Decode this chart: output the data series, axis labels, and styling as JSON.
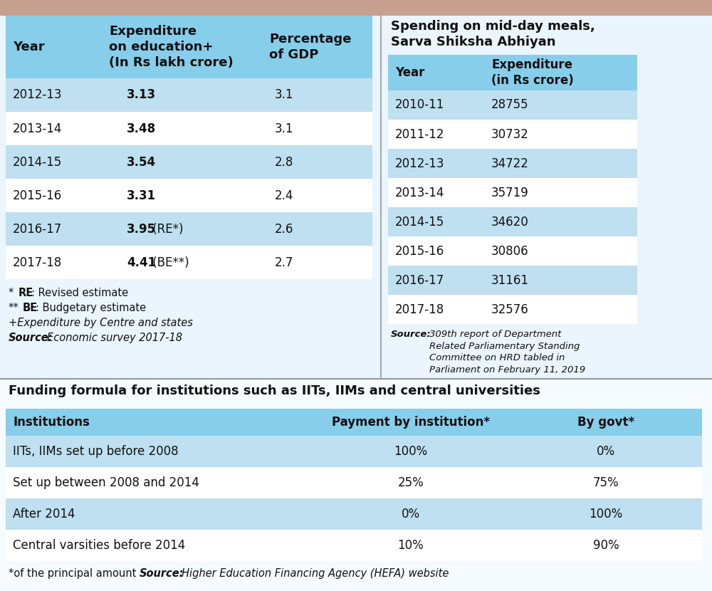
{
  "header_bg": "#87CEEB",
  "row_bg_light": "#BEE0F0",
  "row_bg_white": "#FFFFFF",
  "page_bg": "#F0F8FF",
  "table1_headers": [
    "Year",
    "Expenditure\non education+\n(In Rs lakh crore)",
    "Percentage\nof GDP"
  ],
  "table1_rows": [
    [
      "2012-13",
      "3.13",
      "3.1"
    ],
    [
      "2013-14",
      "3.48",
      "3.1"
    ],
    [
      "2014-15",
      "3.54",
      "2.8"
    ],
    [
      "2015-16",
      "3.31",
      "2.4"
    ],
    [
      "2016-17",
      "3.95 (RE*)",
      "2.6"
    ],
    [
      "2017-18",
      "4.41 (BE**)",
      "2.7"
    ]
  ],
  "table2_title": "Spending on mid-day meals,\nSarva Shiksha Abhiyan",
  "table2_headers": [
    "Year",
    "Expenditure\n(in Rs crore)"
  ],
  "table2_rows": [
    [
      "2010-11",
      "28755"
    ],
    [
      "2011-12",
      "30732"
    ],
    [
      "2012-13",
      "34722"
    ],
    [
      "2013-14",
      "35719"
    ],
    [
      "2014-15",
      "34620"
    ],
    [
      "2015-16",
      "30806"
    ],
    [
      "2016-17",
      "31161"
    ],
    [
      "2017-18",
      "32576"
    ]
  ],
  "table3_title": "Funding formula for institutions such as IITs, IIMs and central universities",
  "table3_headers": [
    "Institutions",
    "Payment by institution*",
    "By govt*"
  ],
  "table3_rows": [
    [
      "IITs, IIMs set up before 2008",
      "100%",
      "0%"
    ],
    [
      "Set up between 2008 and 2014",
      "25%",
      "75%"
    ],
    [
      "After 2014",
      "0%",
      "100%"
    ],
    [
      "Central varsities before 2014",
      "10%",
      "90%"
    ]
  ]
}
